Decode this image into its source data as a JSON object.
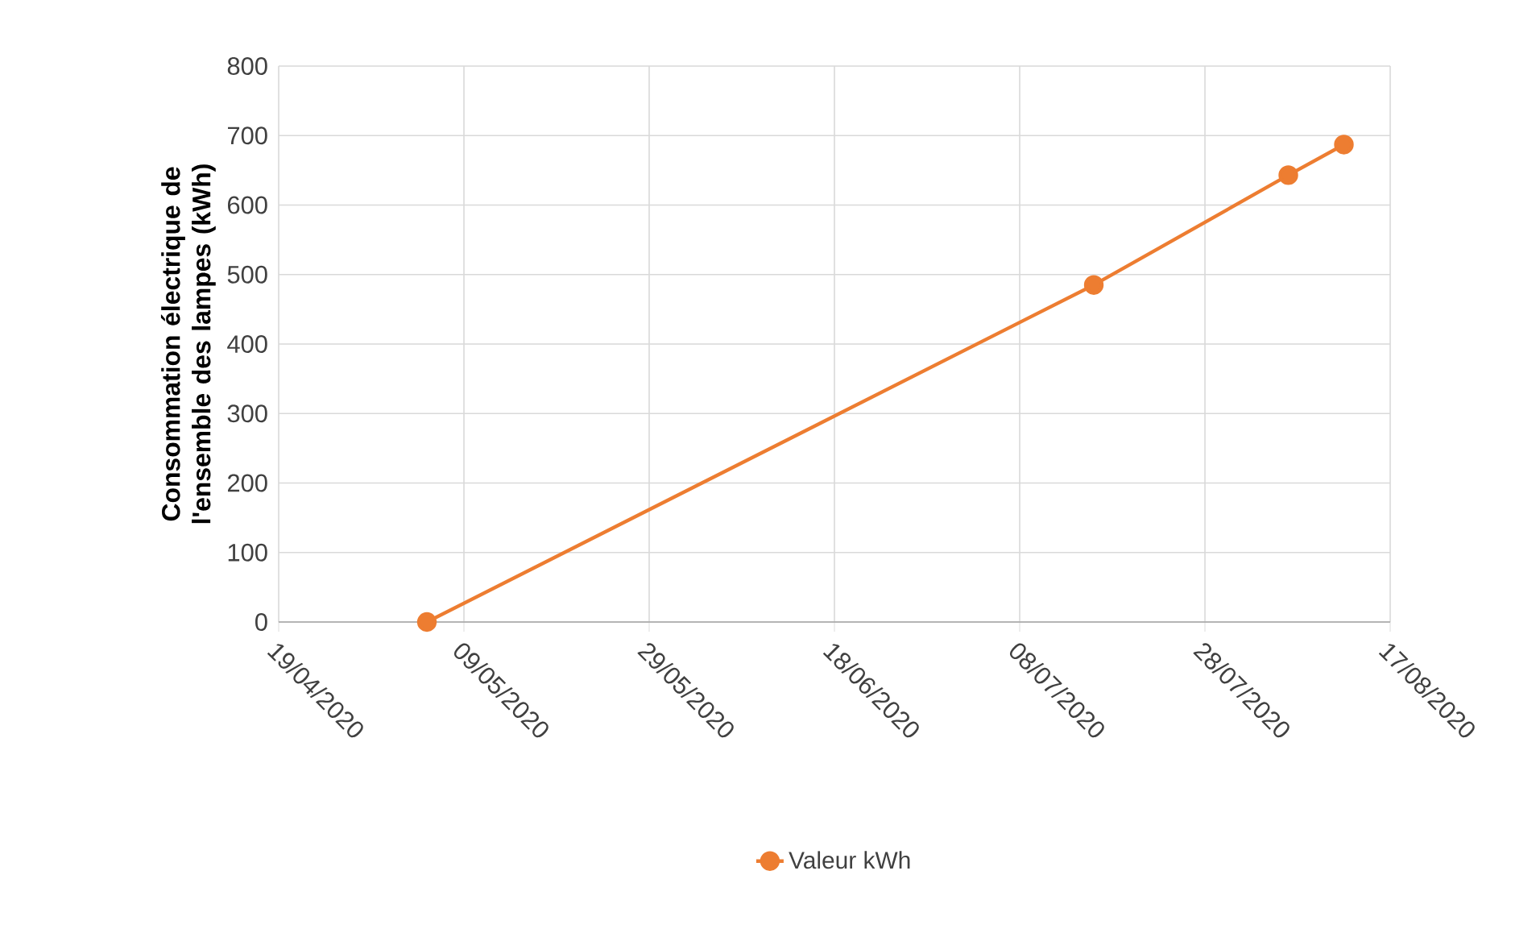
{
  "chart_data": {
    "type": "line",
    "ylabel": "Consommation électrique de l'ensemble des lampes (kWh)",
    "x": [
      "2020-05-05",
      "2020-07-16",
      "2020-08-06",
      "2020-08-12"
    ],
    "series": [
      {
        "name": "Valeur kWh",
        "color": "#ed7d31",
        "values": [
          0,
          485,
          643,
          687
        ]
      }
    ],
    "xlim": [
      "2020-04-19",
      "2020-08-17"
    ],
    "xticks": [
      {
        "value": "2020-04-19",
        "label": "19/04/2020"
      },
      {
        "value": "2020-05-09",
        "label": "09/05/2020"
      },
      {
        "value": "2020-05-29",
        "label": "29/05/2020"
      },
      {
        "value": "2020-06-18",
        "label": "18/06/2020"
      },
      {
        "value": "2020-07-08",
        "label": "08/07/2020"
      },
      {
        "value": "2020-07-28",
        "label": "28/07/2020"
      },
      {
        "value": "2020-08-17",
        "label": "17/08/2020"
      }
    ],
    "ylim": [
      0,
      800
    ],
    "yticks": [
      0,
      100,
      200,
      300,
      400,
      500,
      600,
      700,
      800
    ],
    "grid": true,
    "legend": "bottom",
    "marker": "circle",
    "line_style": "solid"
  }
}
